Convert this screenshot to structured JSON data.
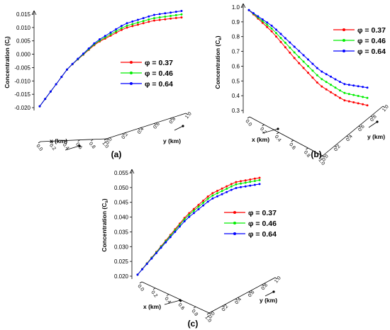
{
  "chart_data": [
    {
      "type": "line",
      "panel_label": "(a)",
      "zlabel": "Concentration (C",
      "zlabel_sub": "i",
      "zlabel_close": ")",
      "xlabel": "x (km)",
      "ylabel": "y (km)",
      "z_ticks": [
        "0.015",
        "0.010",
        "0.005",
        "0.000",
        "-0.005",
        "-0.010",
        "-0.015",
        "-0.020"
      ],
      "z_range": [
        -0.02,
        0.015
      ],
      "x_ticks": [
        "0.0",
        "0.2",
        "0.4",
        "0.6",
        "0.8",
        "1.0"
      ],
      "y_ticks": [
        "0.0",
        "0.2",
        "0.4",
        "0.6",
        "0.8",
        "1.0"
      ],
      "legend_position": "right",
      "series": [
        {
          "name": "φ = 0.37",
          "color": "#ff0000",
          "x": [
            0.0,
            0.2,
            0.4,
            0.6,
            0.8,
            1.0
          ],
          "y": [
            -0.0195,
            -0.0055,
            0.0035,
            0.0088,
            0.0113,
            0.0122
          ]
        },
        {
          "name": "φ = 0.46",
          "color": "#00ee00",
          "x": [
            0.0,
            0.2,
            0.4,
            0.6,
            0.8,
            1.0
          ],
          "y": [
            -0.0195,
            -0.0055,
            0.0038,
            0.0095,
            0.0122,
            0.0133
          ]
        },
        {
          "name": "φ = 0.64",
          "color": "#0000ff",
          "x": [
            0.0,
            0.2,
            0.4,
            0.6,
            0.8,
            1.0
          ],
          "y": [
            -0.0195,
            -0.0055,
            0.0042,
            0.0104,
            0.0134,
            0.0146
          ]
        }
      ]
    },
    {
      "type": "line",
      "panel_label": "(b)",
      "zlabel": "Concentration (C",
      "zlabel_sub": "e",
      "zlabel_close": ")",
      "xlabel": "x (km)",
      "ylabel": "y (km)",
      "z_ticks": [
        "1.0",
        "0.9",
        "0.8",
        "0.7",
        "0.6",
        "0.5",
        "0.4",
        "0.3"
      ],
      "z_range": [
        0.3,
        1.0
      ],
      "x_ticks": [
        "0.0",
        "0.2",
        "0.4",
        "0.6",
        "0.8",
        "1.0"
      ],
      "y_ticks": [
        "0.0",
        "0.2",
        "0.4",
        "0.6",
        "0.8",
        "1.0"
      ],
      "legend_position": "top-right",
      "series": [
        {
          "name": "φ = 0.37",
          "color": "#ff0000",
          "x": [
            0.0,
            0.2,
            0.4,
            0.6,
            0.8,
            1.0
          ],
          "y": [
            0.98,
            0.83,
            0.64,
            0.47,
            0.37,
            0.335
          ]
        },
        {
          "name": "φ = 0.46",
          "color": "#00ee00",
          "x": [
            0.0,
            0.2,
            0.4,
            0.6,
            0.8,
            1.0
          ],
          "y": [
            0.98,
            0.85,
            0.68,
            0.52,
            0.42,
            0.385
          ]
        },
        {
          "name": "φ = 0.64",
          "color": "#0000ff",
          "x": [
            0.0,
            0.2,
            0.4,
            0.6,
            0.8,
            1.0
          ],
          "y": [
            0.98,
            0.87,
            0.72,
            0.57,
            0.48,
            0.455
          ]
        }
      ]
    },
    {
      "type": "line",
      "panel_label": "(c)",
      "zlabel": "Concentration (C",
      "zlabel_sub": "s",
      "zlabel_close": ")",
      "xlabel": "x (km)",
      "ylabel": "y (km)",
      "z_ticks": [
        "0.055",
        "0.050",
        "0.045",
        "0.040",
        "0.035",
        "0.030",
        "0.025",
        "0.020"
      ],
      "z_range": [
        0.02,
        0.055
      ],
      "x_ticks": [
        "0.0",
        "0.2",
        "0.4",
        "0.6",
        "0.8",
        "1.0"
      ],
      "y_ticks": [
        "0.0",
        "0.2",
        "0.4",
        "0.6",
        "0.8",
        "1.0"
      ],
      "legend_position": "right",
      "series": [
        {
          "name": "φ = 0.37",
          "color": "#ff0000",
          "x": [
            0.0,
            0.2,
            0.4,
            0.6,
            0.8,
            1.0
          ],
          "y": [
            0.0205,
            0.0305,
            0.0405,
            0.0478,
            0.0518,
            0.0533
          ]
        },
        {
          "name": "φ = 0.46",
          "color": "#00ee00",
          "x": [
            0.0,
            0.2,
            0.4,
            0.6,
            0.8,
            1.0
          ],
          "y": [
            0.0205,
            0.0303,
            0.04,
            0.047,
            0.051,
            0.0525
          ]
        },
        {
          "name": "φ = 0.64",
          "color": "#0000ff",
          "x": [
            0.0,
            0.2,
            0.4,
            0.6,
            0.8,
            1.0
          ],
          "y": [
            0.0205,
            0.03,
            0.0393,
            0.046,
            0.0498,
            0.0512
          ]
        }
      ]
    }
  ]
}
